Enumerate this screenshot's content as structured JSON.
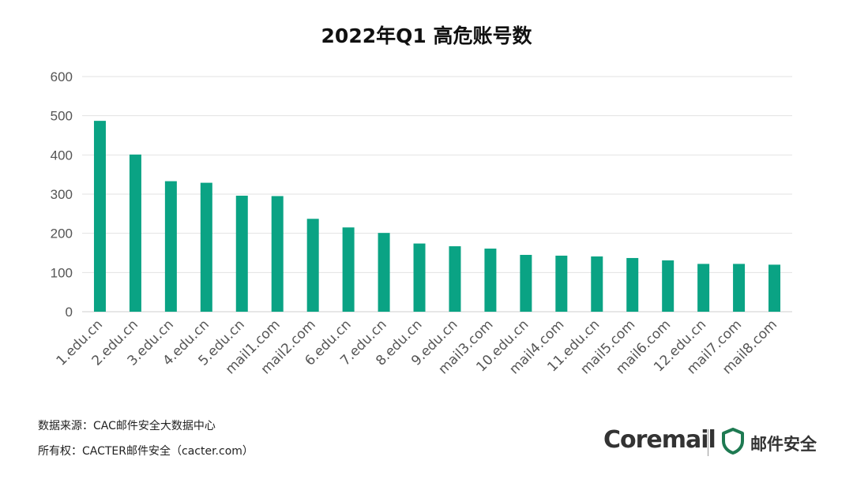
{
  "footer": {
    "source": "数据来源：CAC邮件安全大数据中心",
    "copyright": "所有权：CACTER邮件安全（cacter.com）"
  },
  "brand": {
    "logo_text": "Coremail",
    "product_name": "邮件安全"
  },
  "colors": {
    "bar": "#0aa384",
    "grid": "#e2e2e2",
    "brand_green": "#1e7a52"
  },
  "chart_data": {
    "type": "bar",
    "title": "2022年Q1 高危账号数",
    "xlabel": "",
    "ylabel": "",
    "ylim": [
      0,
      600
    ],
    "yticks": [
      0,
      100,
      200,
      300,
      400,
      500,
      600
    ],
    "grid": true,
    "categories": [
      "1.edu.cn",
      "2.edu.cn",
      "3.edu.cn",
      "4.edu.cn",
      "5.edu.cn",
      "mail1.com",
      "mail2.com",
      "6.edu.cn",
      "7.edu.cn",
      "8.edu.cn",
      "9.edu.cn",
      "mail3.com",
      "10.edu.cn",
      "mail4.com",
      "11.edu.cn",
      "mail5.com",
      "mail6.com",
      "12.edu.cn",
      "mail7.com",
      "mail8.com"
    ],
    "values": [
      487,
      401,
      333,
      329,
      296,
      295,
      237,
      215,
      201,
      174,
      167,
      161,
      145,
      143,
      141,
      137,
      131,
      122,
      122,
      120
    ]
  }
}
